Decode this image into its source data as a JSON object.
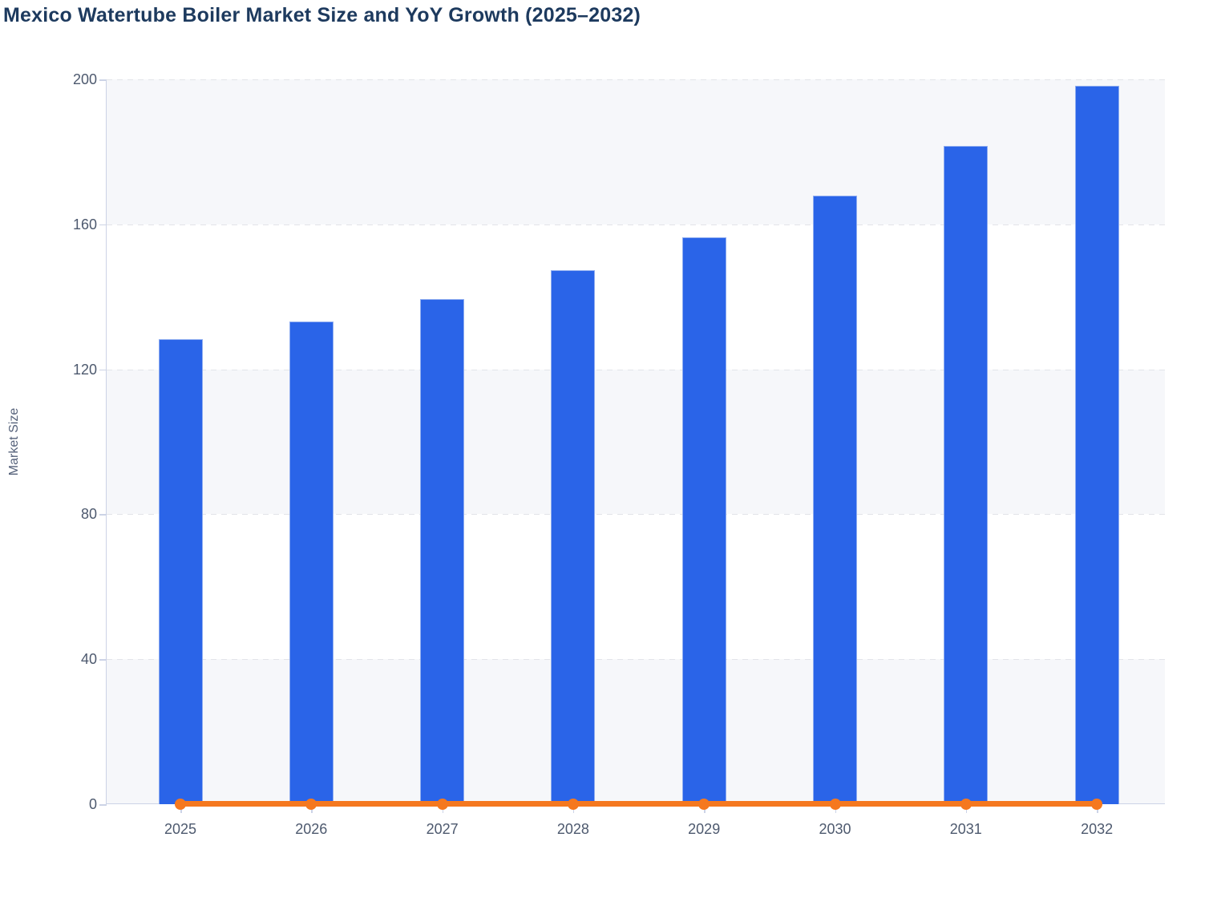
{
  "title": "Mexico Watertube Boiler Market Size and YoY Growth (2025–2032)",
  "y_axis": {
    "label": "Market Size"
  },
  "chart_data": {
    "type": "bar",
    "title": "Mexico Watertube Boiler Market Size and YoY Growth (2025–2032)",
    "categories": [
      "2025",
      "2026",
      "2027",
      "2028",
      "2029",
      "2030",
      "2031",
      "2032"
    ],
    "series": [
      {
        "name": "Market Size",
        "type": "bar",
        "color": "#2a64e8",
        "values": [
          128.3,
          133.2,
          139.4,
          147.3,
          156.5,
          167.9,
          181.7,
          198.3
        ]
      },
      {
        "name": "YoY Growth",
        "type": "line",
        "color": "#f5781f",
        "values": [
          0,
          0,
          0,
          0,
          0,
          0,
          0,
          0
        ]
      }
    ],
    "xlabel": "",
    "ylabel": "Market Size",
    "ylim": [
      0,
      200
    ],
    "yticks": [
      0,
      40,
      80,
      120,
      160,
      200
    ],
    "grid": "dashed-horizontal",
    "legend_position": "none",
    "background_bands": {
      "band_color": "#f6f7fa",
      "alternating_with": "#ffffff"
    }
  },
  "colors": {
    "bar": "#2a64e8",
    "bar_border": "#8fadf0",
    "line": "#f5781f",
    "title_text": "#1d3a5e",
    "axis_text": "#4d596e",
    "axis_line": "#ccd3e6",
    "gridline": "#e2e4e9",
    "band": "#f6f7fa"
  }
}
